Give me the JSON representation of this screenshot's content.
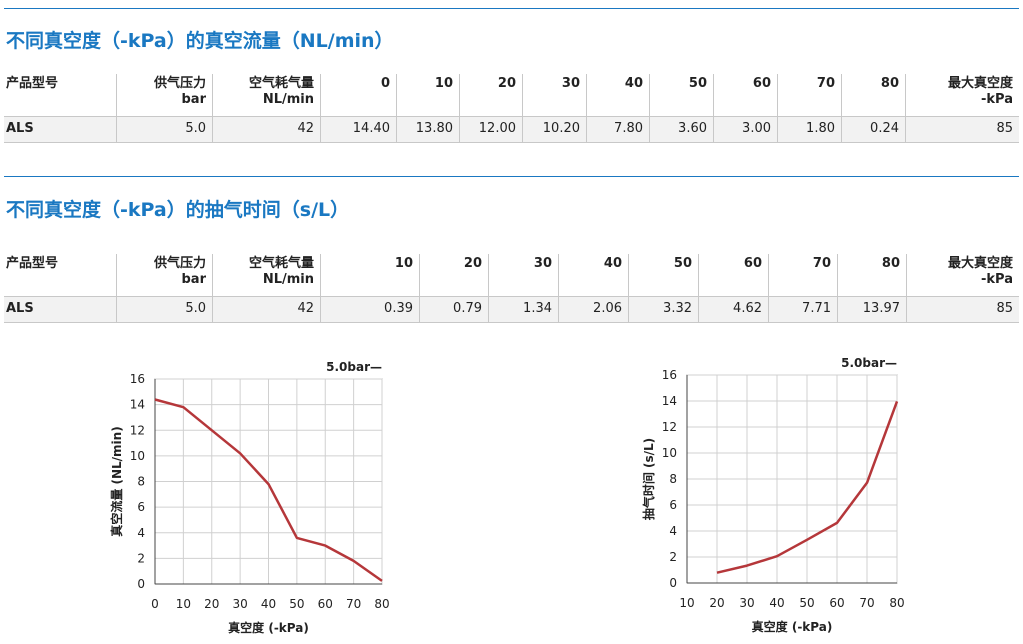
{
  "sections": [
    {
      "title": "不同真空度（-kPa）的真空流量（NL/min）",
      "headers": [
        "产品型号",
        "供气压力\nbar",
        "空气耗气量\nNL/min",
        "0",
        "10",
        "20",
        "30",
        "40",
        "50",
        "60",
        "70",
        "80",
        "最大真空度\n-kPa"
      ],
      "row": [
        "ALS",
        "5.0",
        "42",
        "14.40",
        "13.80",
        "12.00",
        "10.20",
        "7.80",
        "3.60",
        "3.00",
        "1.80",
        "0.24",
        "85"
      ]
    },
    {
      "title": "不同真空度（-kPa）的抽气时间（s/L）",
      "headers": [
        "产品型号",
        "供气压力\nbar",
        "空气耗气量\nNL/min",
        "10",
        "20",
        "30",
        "40",
        "50",
        "60",
        "70",
        "80",
        "最大真空度\n-kPa"
      ],
      "row": [
        "ALS",
        "5.0",
        "42",
        "0.39",
        "0.79",
        "1.34",
        "2.06",
        "3.32",
        "4.62",
        "7.71",
        "13.97",
        "85"
      ]
    }
  ],
  "chart_data": [
    {
      "type": "line",
      "title": "",
      "xlabel": "真空度 (-kPa)",
      "ylabel": "真空流量 (NL/min)",
      "xlim": [
        0,
        80
      ],
      "ylim": [
        0,
        16
      ],
      "xticks": [
        0,
        10,
        20,
        30,
        40,
        50,
        60,
        70,
        80
      ],
      "yticks": [
        0,
        2,
        4,
        6,
        8,
        10,
        12,
        14,
        16
      ],
      "grid": true,
      "legend_text": "5.0bar—",
      "series": [
        {
          "name": "5.0bar",
          "color": "#b5373a",
          "x": [
            0,
            10,
            20,
            30,
            40,
            50,
            60,
            70,
            80
          ],
          "y": [
            14.4,
            13.8,
            12.0,
            10.2,
            7.8,
            3.6,
            3.0,
            1.8,
            0.24
          ]
        }
      ]
    },
    {
      "type": "line",
      "title": "",
      "xlabel": "真空度 (-kPa)",
      "ylabel": "抽气时间 (s/L)",
      "xlim": [
        10,
        80
      ],
      "ylim": [
        0,
        16
      ],
      "xticks": [
        10,
        20,
        30,
        40,
        50,
        60,
        70,
        80
      ],
      "yticks": [
        0,
        2,
        4,
        6,
        8,
        10,
        12,
        14,
        16
      ],
      "grid": true,
      "legend_text": "5.0bar—",
      "series": [
        {
          "name": "5.0bar",
          "color": "#b5373a",
          "x": [
            20,
            30,
            40,
            50,
            60,
            70,
            80
          ],
          "y": [
            0.79,
            1.34,
            2.06,
            3.32,
            4.62,
            7.71,
            13.97
          ]
        }
      ]
    }
  ]
}
